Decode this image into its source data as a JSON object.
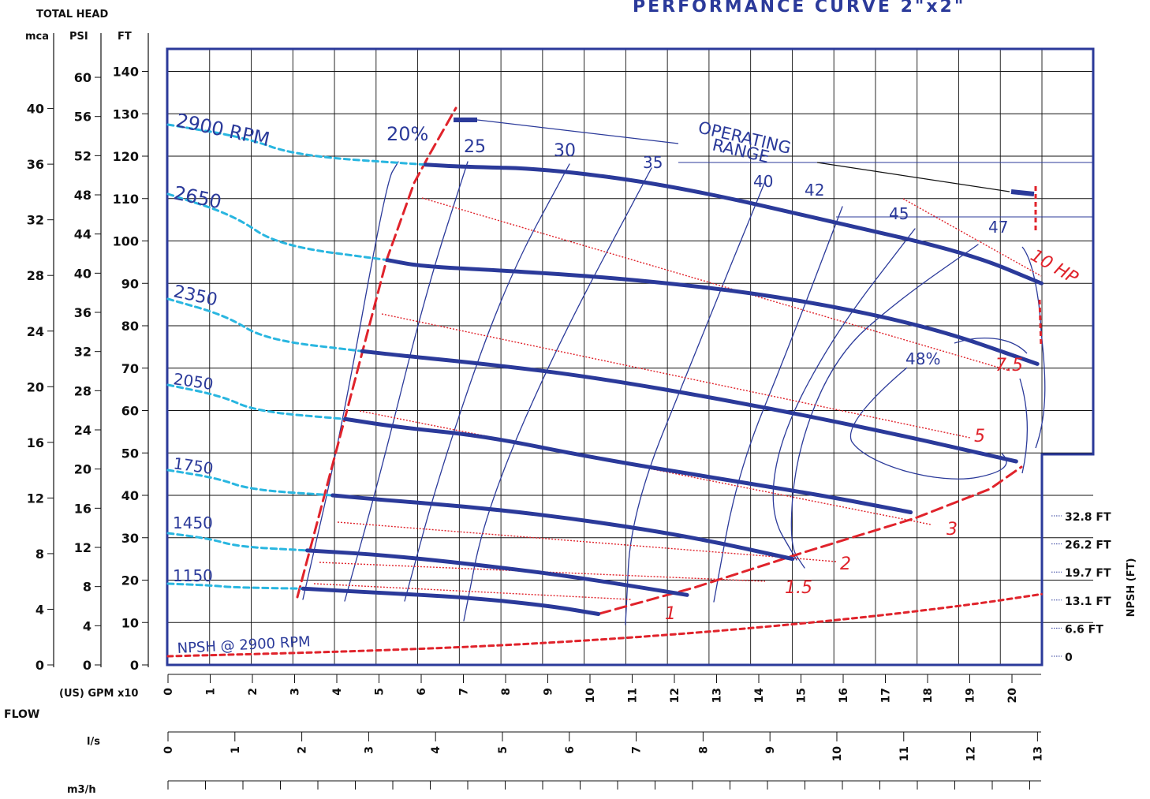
{
  "chart_data": {
    "type": "line",
    "title": "PERFORMANCE CURVE  2\"x2\"",
    "head_axis_title": "TOTAL HEAD",
    "mca_label": "mca",
    "psi_label": "PSI",
    "ft_label": "FT",
    "ft_ticks": [
      "0",
      "10",
      "20",
      "30",
      "40",
      "50",
      "60",
      "70",
      "80",
      "90",
      "100",
      "110",
      "120",
      "130",
      "140"
    ],
    "psi_ticks": [
      "0",
      "4",
      "8",
      "12",
      "16",
      "20",
      "24",
      "28",
      "32",
      "36",
      "40",
      "44",
      "48",
      "52",
      "56",
      "60"
    ],
    "mca_ticks": [
      "0",
      "4",
      "8",
      "12",
      "16",
      "20",
      "24",
      "28",
      "32",
      "36",
      "40"
    ],
    "flow_label": "FLOW",
    "gpm_label": "(US) GPM x10",
    "gpm_ticks": [
      "0",
      "1",
      "2",
      "3",
      "4",
      "5",
      "6",
      "7",
      "8",
      "9",
      "10",
      "11",
      "12",
      "13",
      "14",
      "15",
      "16",
      "17",
      "18",
      "19",
      "20"
    ],
    "ls_label": "l/s",
    "ls_ticks": [
      "0",
      "1",
      "2",
      "3",
      "4",
      "5",
      "6",
      "7",
      "8",
      "9",
      "10",
      "11",
      "12",
      "13"
    ],
    "m3h_label": "m3/h",
    "npsh_axis_label": "NPSH  (FT)",
    "npsh_ticks": [
      "0",
      "6.6 FT",
      "13.1 FT",
      "19.7 FT",
      "26.2 FT",
      "32.8 FT"
    ],
    "operating_range_label": "OPERATING RANGE",
    "npsh_curve_label": "NPSH @ 2900 RPM",
    "xlim": [
      0,
      21
    ],
    "ylim": [
      0,
      145
    ],
    "speed_curves": [
      {
        "name": "2900 RPM",
        "x": [
          6.1,
          7.0,
          9.0,
          12.0,
          16.0,
          19.0,
          20.7
        ],
        "y": [
          118,
          117.5,
          117,
          113,
          104,
          97,
          90
        ]
      },
      {
        "name": "2650",
        "x": [
          5.2,
          6.0,
          8.0,
          11.0,
          14.5,
          18.0,
          20.6
        ],
        "y": [
          95.5,
          94,
          93,
          91,
          87,
          80,
          71
        ]
      },
      {
        "name": "2350",
        "x": [
          4.6,
          5.5,
          7.5,
          10.0,
          13.5,
          17.0,
          20.1
        ],
        "y": [
          74,
          73,
          71,
          68,
          62,
          55,
          48
        ]
      },
      {
        "name": "2050",
        "x": [
          4.2,
          5.5,
          7.5,
          10.0,
          13.0,
          15.5,
          17.6
        ],
        "y": [
          58,
          56,
          54,
          49,
          44,
          40,
          36
        ]
      },
      {
        "name": "1750",
        "x": [
          3.9,
          5.0,
          7.5,
          10.0,
          12.5,
          14.8
        ],
        "y": [
          40,
          39,
          37,
          34,
          30,
          25
        ]
      },
      {
        "name": "1450",
        "x": [
          3.3,
          5.0,
          7.0,
          9.5,
          12.3
        ],
        "y": [
          27,
          26,
          24,
          21,
          16.5
        ]
      },
      {
        "name": "1150",
        "x": [
          3.2,
          5.0,
          7.0,
          9.0,
          10.2
        ],
        "y": [
          18,
          17,
          16,
          14,
          12
        ]
      }
    ],
    "efficiency_labels": [
      "20%",
      "25",
      "30",
      "35",
      "40",
      "42",
      "45",
      "47",
      "48%"
    ],
    "power_labels": [
      "1",
      "1.5",
      "2",
      "3",
      "5",
      "7.5",
      "10 HP"
    ],
    "npsh_curve": {
      "x": [
        0,
        4,
        8,
        12,
        16,
        19,
        20.7
      ],
      "y_ft": [
        0,
        1.0,
        2.5,
        5.0,
        8.5,
        12.0,
        14.5
      ]
    },
    "grid": true
  }
}
